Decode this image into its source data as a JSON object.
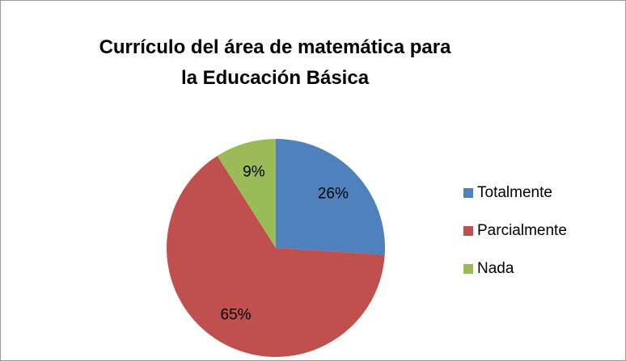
{
  "chart_data": {
    "type": "pie",
    "title": "Currículo del área de matemática para la Educación Básica",
    "categories": [
      "Totalmente",
      "Parcialmente",
      "Nada"
    ],
    "values": [
      26,
      65,
      9
    ],
    "value_labels": [
      "26%",
      "65%",
      "9%"
    ],
    "colors": [
      "#4f81bd",
      "#c0504d",
      "#9bbb59"
    ],
    "legend": "right"
  }
}
